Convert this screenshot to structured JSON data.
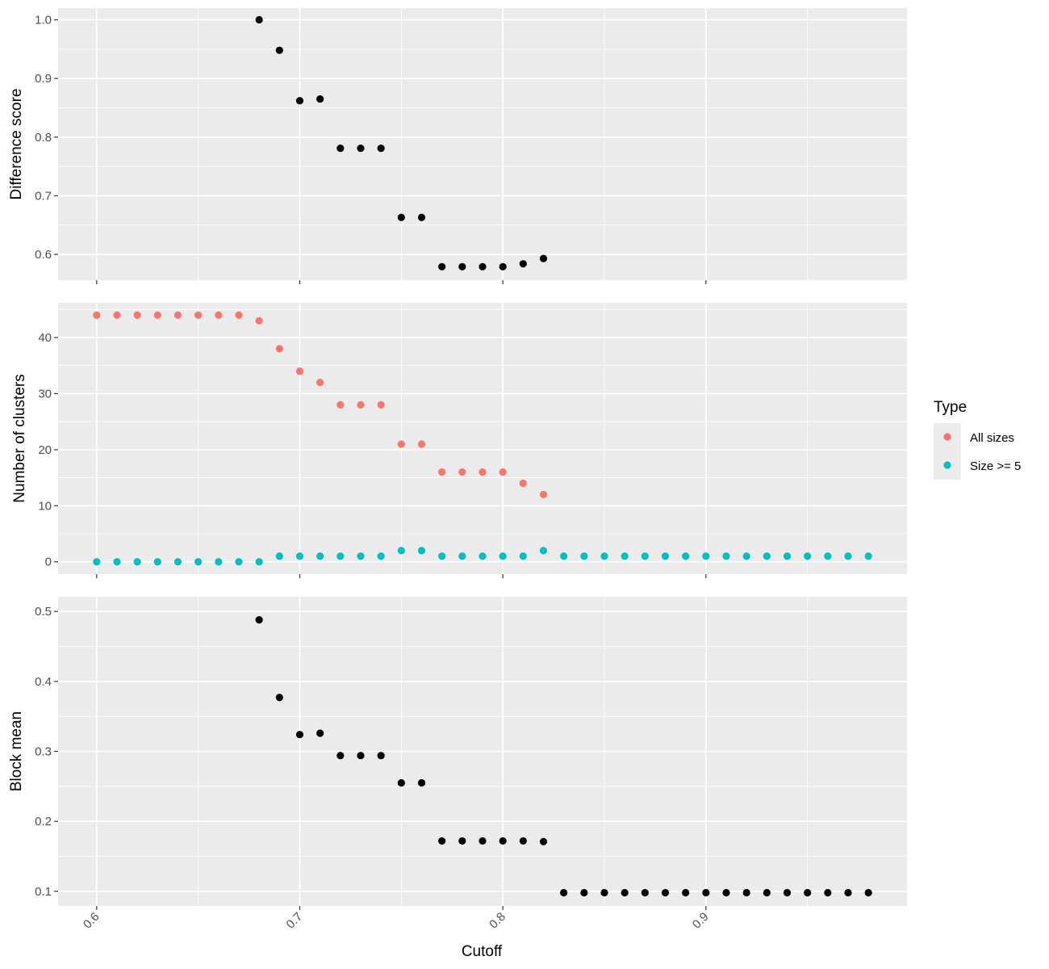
{
  "chart_data": {
    "type": "scatter",
    "xlabel": "Cutoff",
    "x_ticks": [
      0.6,
      0.7,
      0.8,
      0.9
    ],
    "x_tick_labels": [
      "0.6",
      "0.7",
      "0.8",
      "0.9"
    ],
    "xlim": [
      0.581,
      0.999
    ],
    "grid": true,
    "legend": {
      "title": "Type",
      "placement": "right",
      "entries": [
        {
          "name": "All sizes",
          "color": "#F8766D"
        },
        {
          "name": "Size >= 5",
          "color": "#00BFC4"
        }
      ]
    },
    "panels": [
      {
        "ylabel": "Difference score",
        "ylim": [
          0.556,
          1.02
        ],
        "y_ticks": [
          0.6,
          0.7,
          0.8,
          0.9,
          1.0
        ],
        "y_tick_labels": [
          "0.6",
          "0.7",
          "0.8",
          "0.9",
          "1.0"
        ],
        "series": [
          {
            "color": "#000000",
            "x": [
              0.68,
              0.69,
              0.7,
              0.71,
              0.72,
              0.73,
              0.74,
              0.75,
              0.76,
              0.77,
              0.78,
              0.79,
              0.8,
              0.81,
              0.82
            ],
            "y": [
              1.0,
              0.948,
              0.862,
              0.865,
              0.781,
              0.781,
              0.781,
              0.663,
              0.663,
              0.579,
              0.579,
              0.579,
              0.579,
              0.584,
              0.593
            ]
          }
        ]
      },
      {
        "ylabel": "Number of clusters",
        "ylim": [
          -2.2,
          46.2
        ],
        "y_ticks": [
          0,
          10,
          20,
          30,
          40
        ],
        "y_tick_labels": [
          "0",
          "10",
          "20",
          "30",
          "40"
        ],
        "series": [
          {
            "name": "All sizes",
            "color": "#F8766D",
            "x": [
              0.6,
              0.61,
              0.62,
              0.63,
              0.64,
              0.65,
              0.66,
              0.67,
              0.68,
              0.69,
              0.7,
              0.71,
              0.72,
              0.73,
              0.74,
              0.75,
              0.76,
              0.77,
              0.78,
              0.79,
              0.8,
              0.81,
              0.82
            ],
            "y": [
              44,
              44,
              44,
              44,
              44,
              44,
              44,
              44,
              43,
              38,
              34,
              32,
              28,
              28,
              28,
              21,
              21,
              16,
              16,
              16,
              16,
              14,
              12
            ]
          },
          {
            "name": "Size >= 5",
            "color": "#00BFC4",
            "x": [
              0.6,
              0.61,
              0.62,
              0.63,
              0.64,
              0.65,
              0.66,
              0.67,
              0.68,
              0.69,
              0.7,
              0.71,
              0.72,
              0.73,
              0.74,
              0.75,
              0.76,
              0.77,
              0.78,
              0.79,
              0.8,
              0.81,
              0.82,
              0.83,
              0.84,
              0.85,
              0.86,
              0.87,
              0.88,
              0.89,
              0.9,
              0.91,
              0.92,
              0.93,
              0.94,
              0.95,
              0.96,
              0.97,
              0.98
            ],
            "y": [
              0,
              0,
              0,
              0,
              0,
              0,
              0,
              0,
              0,
              1,
              1,
              1,
              1,
              1,
              1,
              2,
              2,
              1,
              1,
              1,
              1,
              1,
              2,
              1,
              1,
              1,
              1,
              1,
              1,
              1,
              1,
              1,
              1,
              1,
              1,
              1,
              1,
              1,
              1
            ]
          }
        ]
      },
      {
        "ylabel": "Block mean",
        "ylim": [
          0.079,
          0.521
        ],
        "y_ticks": [
          0.1,
          0.2,
          0.3,
          0.4,
          0.5
        ],
        "y_tick_labels": [
          "0.1",
          "0.2",
          "0.3",
          "0.4",
          "0.5"
        ],
        "series": [
          {
            "color": "#000000",
            "x": [
              0.68,
              0.69,
              0.7,
              0.71,
              0.72,
              0.73,
              0.74,
              0.75,
              0.76,
              0.77,
              0.78,
              0.79,
              0.8,
              0.81,
              0.82,
              0.83,
              0.84,
              0.85,
              0.86,
              0.87,
              0.88,
              0.89,
              0.9,
              0.91,
              0.92,
              0.93,
              0.94,
              0.95,
              0.96,
              0.97,
              0.98
            ],
            "y": [
              0.488,
              0.377,
              0.324,
              0.326,
              0.294,
              0.294,
              0.294,
              0.255,
              0.255,
              0.172,
              0.172,
              0.172,
              0.172,
              0.172,
              0.171,
              0.098,
              0.098,
              0.098,
              0.098,
              0.098,
              0.098,
              0.098,
              0.098,
              0.098,
              0.098,
              0.098,
              0.098,
              0.098,
              0.098,
              0.098,
              0.098
            ]
          }
        ]
      }
    ]
  }
}
